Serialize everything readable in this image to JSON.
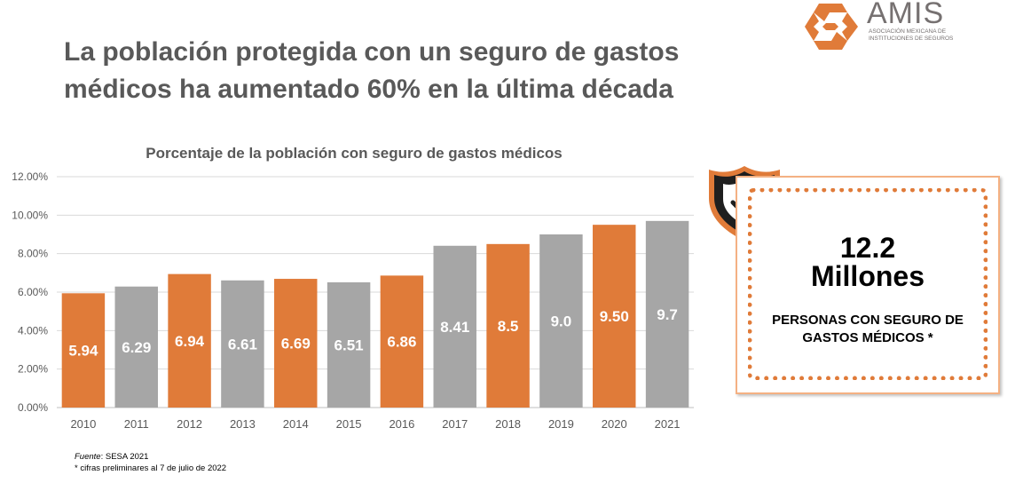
{
  "headline": "La población protegida con un seguro de gastos médicos ha aumentado 60% en la última década",
  "logo": {
    "name": "AMIS",
    "subtitle": "ASOCIACIÓN MEXICANA DE INSTITUCIONES DE SEGUROS"
  },
  "colors": {
    "orange": "#e07b39",
    "gray": "#a6a6a6",
    "text": "#595959",
    "callout_border": "#f4b183"
  },
  "chart_data": {
    "type": "bar",
    "title": "Porcentaje de la población con seguro de gastos médicos",
    "categories": [
      "2010",
      "2011",
      "2012",
      "2013",
      "2014",
      "2015",
      "2016",
      "2017",
      "2018",
      "2019",
      "2020",
      "2021"
    ],
    "values": [
      5.94,
      6.29,
      6.94,
      6.61,
      6.69,
      6.51,
      6.86,
      8.41,
      8.5,
      9.0,
      9.5,
      9.7
    ],
    "data_labels": [
      "5.94",
      "6.29",
      "6.94",
      "6.61",
      "6.69",
      "6.51",
      "6.86",
      "8.41",
      "8.5",
      "9.0",
      "9.50",
      "9.7"
    ],
    "bar_colors": [
      "orange",
      "gray",
      "orange",
      "gray",
      "orange",
      "gray",
      "orange",
      "gray",
      "orange",
      "gray",
      "orange",
      "gray"
    ],
    "yticks": [
      "0.00%",
      "2.00%",
      "4.00%",
      "6.00%",
      "8.00%",
      "10.00%",
      "12.00%"
    ],
    "ylim": [
      0,
      12
    ],
    "xlabel": "",
    "ylabel": "",
    "grid": true
  },
  "source": {
    "label": "Fuente",
    "text": ": SESA 2021",
    "note": "* cifras preliminares al 7 de julio de 2022"
  },
  "callout": {
    "number": "12.2",
    "unit": "Millones",
    "description": "PERSONAS CON SEGURO DE GASTOS MÉDICOS *",
    "icon": "shield-check-icon"
  }
}
